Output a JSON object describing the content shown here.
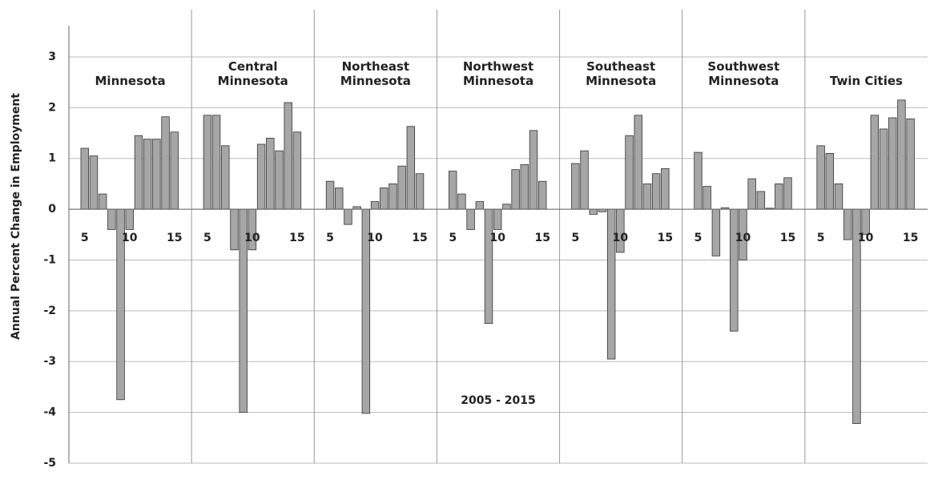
{
  "chart_data": {
    "type": "bar",
    "y_label": "Annual Percent Change in Employment",
    "annotation": "2005 - 2015",
    "categories": [
      "5",
      null,
      null,
      null,
      null,
      "10",
      null,
      null,
      null,
      null,
      "15"
    ],
    "ylim": [
      -5,
      3.93
    ],
    "yticks": [
      3,
      2,
      1,
      0,
      -1,
      -2,
      -3,
      -4,
      -5
    ],
    "grid": true,
    "series": [
      {
        "name": "Minnesota",
        "color": "#a6a6a6",
        "values": [
          1.2,
          1.05,
          0.3,
          -0.4,
          -3.75,
          -0.4,
          1.45,
          1.38,
          1.38,
          1.82,
          1.52
        ]
      },
      {
        "name": "Central Minnesota",
        "color": "#a6a6a6",
        "values": [
          1.85,
          1.85,
          1.25,
          -0.8,
          -4.0,
          -0.8,
          1.28,
          1.4,
          1.15,
          2.1,
          1.52
        ]
      },
      {
        "name": "Northeast Minnesota",
        "color": "#a6a6a6",
        "values": [
          0.55,
          0.42,
          -0.3,
          0.05,
          -4.02,
          0.15,
          0.42,
          0.5,
          0.85,
          1.63,
          0.7
        ]
      },
      {
        "name": "Northwest Minnesota",
        "color": "#a6a6a6",
        "values": [
          0.75,
          0.3,
          -0.4,
          0.15,
          -2.25,
          -0.4,
          0.1,
          0.78,
          0.88,
          1.55,
          0.55
        ]
      },
      {
        "name": "Southeast Minnesota",
        "color": "#a6a6a6",
        "values": [
          0.9,
          1.15,
          -0.1,
          -0.05,
          -2.95,
          -0.85,
          1.45,
          1.85,
          0.5,
          0.7,
          0.8
        ]
      },
      {
        "name": "Southwest Minnesota",
        "color": "#a6a6a6",
        "values": [
          1.12,
          0.45,
          -0.92,
          0.03,
          -2.4,
          -1.0,
          0.6,
          0.35,
          0.02,
          0.5,
          0.62
        ]
      },
      {
        "name": "Twin Cities",
        "color": "#a6a6a6",
        "values": [
          1.25,
          1.1,
          0.5,
          -0.6,
          -4.22,
          -0.5,
          1.85,
          1.58,
          1.8,
          2.15,
          1.78
        ]
      }
    ]
  }
}
